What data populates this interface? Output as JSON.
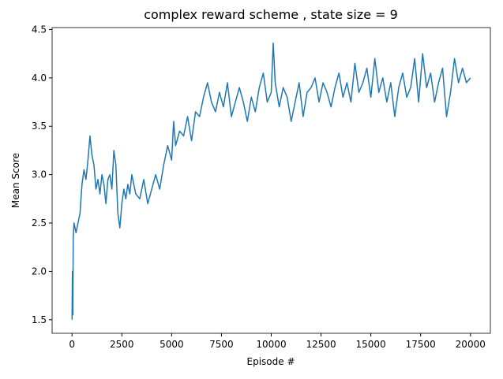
{
  "chart_data": {
    "type": "line",
    "title": "complex reward scheme , state size = 9",
    "xlabel": "Episode #",
    "ylabel": "Mean Score",
    "x": [
      0,
      20,
      40,
      60,
      100,
      200,
      300,
      400,
      500,
      600,
      700,
      800,
      900,
      1000,
      1100,
      1200,
      1300,
      1400,
      1500,
      1600,
      1700,
      1800,
      1900,
      2000,
      2100,
      2200,
      2300,
      2400,
      2500,
      2600,
      2700,
      2800,
      2900,
      3000,
      3200,
      3400,
      3600,
      3800,
      4000,
      4200,
      4400,
      4600,
      4800,
      5000,
      5100,
      5200,
      5400,
      5600,
      5800,
      6000,
      6200,
      6400,
      6600,
      6800,
      7000,
      7200,
      7400,
      7600,
      7800,
      8000,
      8200,
      8400,
      8600,
      8800,
      9000,
      9200,
      9400,
      9600,
      9800,
      10000,
      10100,
      10200,
      10400,
      10600,
      10800,
      11000,
      11200,
      11400,
      11600,
      11800,
      12000,
      12200,
      12400,
      12600,
      12800,
      13000,
      13200,
      13400,
      13600,
      13800,
      14000,
      14200,
      14400,
      14600,
      14800,
      15000,
      15200,
      15400,
      15600,
      15800,
      16000,
      16200,
      16400,
      16600,
      16800,
      17000,
      17200,
      17400,
      17600,
      17800,
      18000,
      18200,
      18400,
      18600,
      18800,
      19000,
      19200,
      19400,
      19600,
      19800,
      20000
    ],
    "series": [
      {
        "name": "Mean Score",
        "color": "#1f77b4",
        "values": [
          1.5,
          2.0,
          1.55,
          2.35,
          2.5,
          2.4,
          2.5,
          2.6,
          2.9,
          3.05,
          2.95,
          3.15,
          3.4,
          3.2,
          3.1,
          2.85,
          2.95,
          2.8,
          3.0,
          2.9,
          2.7,
          2.95,
          3.0,
          2.85,
          3.25,
          3.1,
          2.6,
          2.45,
          2.7,
          2.85,
          2.75,
          2.9,
          2.8,
          3.0,
          2.8,
          2.75,
          2.95,
          2.7,
          2.85,
          3.0,
          2.85,
          3.1,
          3.3,
          3.15,
          3.55,
          3.3,
          3.45,
          3.4,
          3.6,
          3.35,
          3.65,
          3.6,
          3.8,
          3.95,
          3.75,
          3.65,
          3.85,
          3.7,
          3.95,
          3.6,
          3.75,
          3.9,
          3.75,
          3.55,
          3.8,
          3.65,
          3.9,
          4.05,
          3.75,
          3.85,
          4.36,
          3.95,
          3.7,
          3.9,
          3.8,
          3.55,
          3.75,
          3.95,
          3.6,
          3.85,
          3.9,
          4.0,
          3.75,
          3.95,
          3.85,
          3.7,
          3.9,
          4.05,
          3.8,
          3.95,
          3.75,
          4.15,
          3.85,
          3.95,
          4.1,
          3.8,
          4.2,
          3.85,
          4.0,
          3.75,
          3.95,
          3.6,
          3.9,
          4.05,
          3.8,
          3.9,
          4.2,
          3.75,
          4.25,
          3.9,
          4.05,
          3.75,
          3.95,
          4.1,
          3.6,
          3.85,
          4.2,
          3.95,
          4.1,
          3.95,
          4.0
        ]
      }
    ],
    "xlim": [
      -1000,
      21000
    ],
    "xticks": [
      0,
      2500,
      5000,
      7500,
      10000,
      12500,
      15000,
      17500,
      20000
    ],
    "ylim": [
      1.36,
      4.52
    ],
    "yticks": [
      1.5,
      {
        "value": 2,
        "label": "2.0"
      },
      2.5,
      {
        "value": 3,
        "label": "3.0"
      },
      3.5,
      {
        "value": 4,
        "label": "4.0"
      },
      4.5
    ],
    "grid": false
  }
}
